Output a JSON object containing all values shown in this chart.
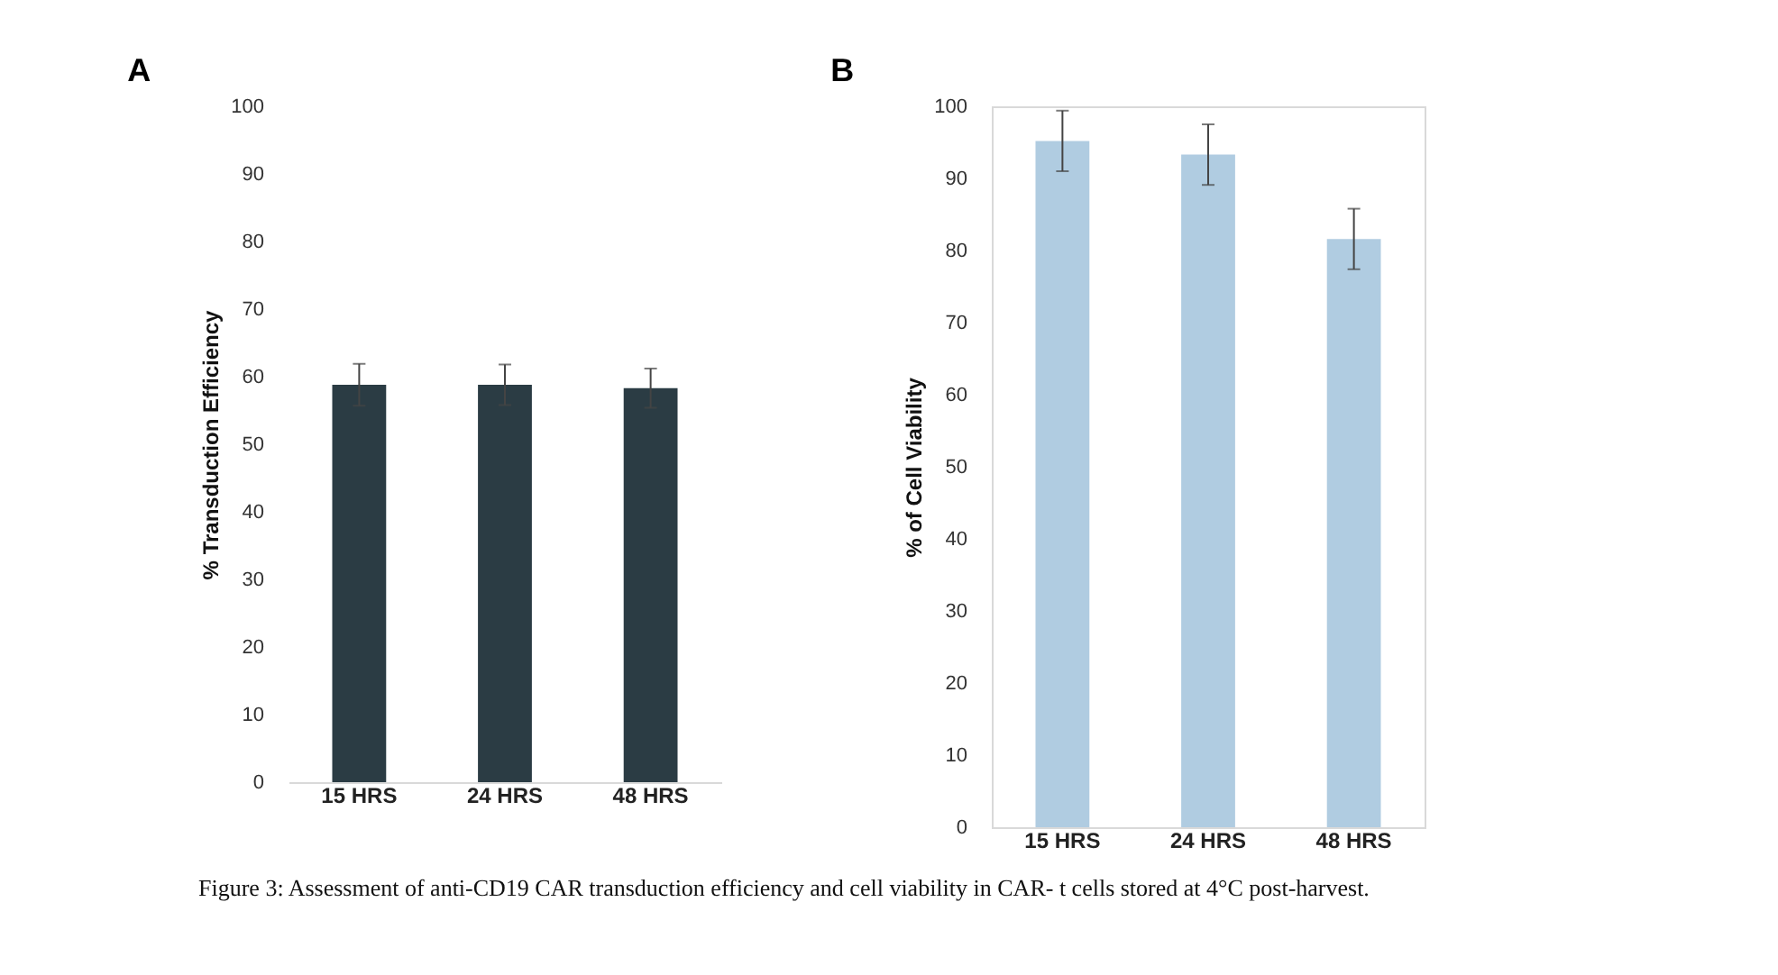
{
  "chart_data": [
    {
      "type": "bar",
      "title": "A",
      "ylabel": "% Transduction Efficiency",
      "categories": [
        "15 HRS",
        "24 HRS",
        "48 HRS"
      ],
      "values": [
        58.8,
        58.8,
        58.3
      ],
      "errors": [
        3.1,
        3.0,
        2.9
      ],
      "color": "#2b3c44",
      "ylim": [
        0,
        100
      ],
      "yticks": [
        0,
        10,
        20,
        30,
        40,
        50,
        60,
        70,
        80,
        90,
        100
      ],
      "grid": false,
      "annotations": [
        "Figure 3: Assessment of anti-CD19 CAR transduction efficiency and cell viability in CAR- t cells stored at 4°C post-harvest."
      ]
    },
    {
      "type": "bar",
      "title": "B",
      "ylabel": "% of Cell Viability",
      "categories": [
        "15 HRS",
        "24 HRS",
        "48 HRS"
      ],
      "values": [
        95.2,
        93.3,
        81.6
      ],
      "errors": [
        4.2,
        4.2,
        4.2
      ],
      "color": "#b0cce1",
      "ylim": [
        0,
        100
      ],
      "yticks": [
        0,
        10,
        20,
        30,
        40,
        50,
        60,
        70,
        80,
        90,
        100
      ],
      "grid": false
    }
  ]
}
